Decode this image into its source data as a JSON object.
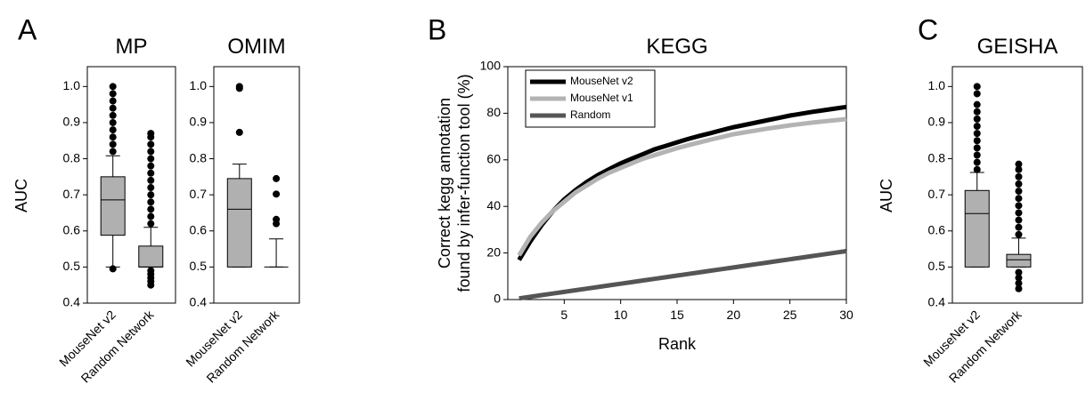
{
  "chart_data": [
    {
      "type": "box",
      "panel": "A",
      "title": "MP",
      "ylabel": "AUC",
      "categories": [
        "MouseNet v2",
        "Random Network"
      ],
      "ylim": [
        0.4,
        1.055
      ],
      "yticks": [
        0.4,
        0.5,
        0.6,
        0.7,
        0.8,
        0.9,
        {
          "value": 1,
          "label": "1.0"
        }
      ],
      "color": "#b0b0b0",
      "boxes": [
        {
          "whisker_low": 0.5,
          "q1": 0.588,
          "median": 0.686,
          "q3": 0.75,
          "whisker_high": 0.808,
          "outliers": [
            0.495,
            0.82,
            0.84,
            0.86,
            0.88,
            0.9,
            0.92,
            0.94,
            0.96,
            0.98,
            1.0
          ]
        },
        {
          "whisker_low": 0.5,
          "q1": 0.5,
          "median": 0.5,
          "q3": 0.558,
          "whisker_high": 0.61,
          "outliers": [
            0.45,
            0.46,
            0.47,
            0.48,
            0.49,
            0.62,
            0.64,
            0.66,
            0.68,
            0.7,
            0.72,
            0.74,
            0.76,
            0.78,
            0.8,
            0.82,
            0.84,
            0.86,
            0.87
          ]
        }
      ]
    },
    {
      "type": "box",
      "title": "OMIM",
      "categories": [
        "MouseNet v2",
        "Random Network"
      ],
      "ylim": [
        0.4,
        1.055
      ],
      "yticks": [
        0.4,
        0.5,
        0.6,
        0.7,
        0.8,
        0.9,
        {
          "value": 1,
          "label": "1.0"
        }
      ],
      "color": "#b0b0b0",
      "boxes": [
        {
          "whisker_low": 0.5,
          "q1": 0.5,
          "median": 0.66,
          "q3": 0.745,
          "whisker_high": 0.785,
          "outliers": [
            0.873,
            0.995,
            1.0
          ]
        },
        {
          "whisker_low": 0.5,
          "q1": 0.5,
          "median": 0.5,
          "q3": 0.5,
          "whisker_high": 0.578,
          "outliers": [
            0.62,
            0.632,
            0.702,
            0.745
          ]
        }
      ]
    },
    {
      "type": "line",
      "panel": "B",
      "title": "KEGG",
      "ylabel": [
        "Correct kegg annotation",
        "found by infer-function tool (%)"
      ],
      "xlabel": "Rank",
      "x": [
        1,
        2,
        3,
        4,
        5,
        6,
        7,
        8,
        9,
        10,
        11,
        12,
        13,
        14,
        15,
        16,
        17,
        18,
        19,
        20,
        21,
        22,
        23,
        24,
        25,
        26,
        27,
        28,
        29,
        30
      ],
      "xlim": [
        0,
        30
      ],
      "xticks": [
        5,
        10,
        15,
        20,
        25,
        30
      ],
      "ylim": [
        0,
        100
      ],
      "yticks": [
        0,
        20,
        40,
        60,
        80,
        100
      ],
      "legend": "upper-left",
      "series": [
        {
          "name": "MouseNet v2",
          "color": "#000000",
          "values": [
            17,
            25,
            32,
            38,
            43,
            47,
            50.5,
            53.5,
            56,
            58.5,
            60.5,
            62.5,
            64.5,
            66,
            67.5,
            69,
            70.3,
            71.5,
            72.8,
            74,
            75,
            76,
            77,
            78,
            79,
            79.8,
            80.6,
            81.3,
            82,
            82.7
          ]
        },
        {
          "name": "MouseNet v1",
          "color": "#b3b3b3",
          "values": [
            19,
            27,
            33,
            38,
            42,
            46,
            49,
            52,
            54.5,
            56.5,
            58.5,
            60.5,
            62,
            63.5,
            65,
            66.3,
            67.5,
            68.7,
            69.8,
            71,
            71.8,
            72.6,
            73.4,
            74.1,
            74.8,
            75.4,
            76,
            76.5,
            77,
            77.5
          ]
        },
        {
          "name": "Random",
          "color": "#555555",
          "values": [
            0.5,
            1.2,
            1.9,
            2.6,
            3.3,
            4,
            4.7,
            5.4,
            6.1,
            6.8,
            7.5,
            8.2,
            8.9,
            9.6,
            10.3,
            11,
            11.7,
            12.4,
            13.1,
            13.8,
            14.5,
            15.2,
            15.9,
            16.6,
            17.3,
            18,
            18.7,
            19.4,
            20.1,
            20.8
          ]
        }
      ]
    },
    {
      "type": "box",
      "panel": "C",
      "title": "GEISHA",
      "ylabel": "AUC",
      "categories": [
        "MouseNet v2",
        "Random Network"
      ],
      "ylim": [
        0.4,
        1.055
      ],
      "yticks": [
        0.4,
        0.5,
        0.6,
        0.7,
        0.8,
        0.9,
        {
          "value": 1,
          "label": "1.0"
        }
      ],
      "color": "#b0b0b0",
      "boxes": [
        {
          "whisker_low": 0.5,
          "q1": 0.5,
          "median": 0.648,
          "q3": 0.712,
          "whisker_high": 0.762,
          "outliers": [
            0.77,
            0.79,
            0.81,
            0.83,
            0.85,
            0.87,
            0.89,
            0.91,
            0.93,
            0.95,
            0.98,
            1.0
          ]
        },
        {
          "whisker_low": 0.5,
          "q1": 0.5,
          "median": 0.52,
          "q3": 0.535,
          "whisker_high": 0.58,
          "outliers": [
            0.44,
            0.455,
            0.47,
            0.485,
            0.59,
            0.61,
            0.63,
            0.65,
            0.67,
            0.69,
            0.71,
            0.73,
            0.75,
            0.77,
            0.785
          ]
        }
      ]
    }
  ]
}
